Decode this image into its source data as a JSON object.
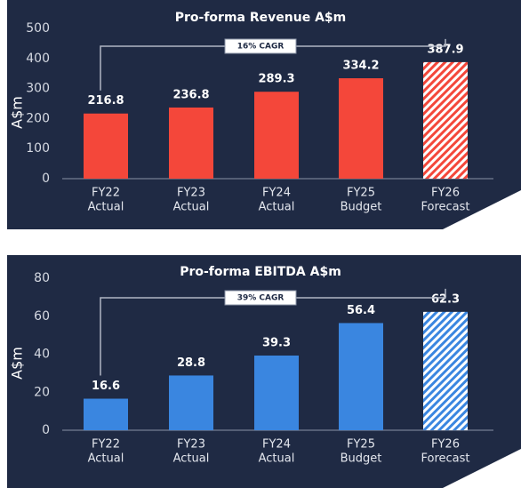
{
  "chart_data": [
    {
      "type": "bar",
      "title": "Pro-forma Revenue A$m",
      "y_label": "A$m",
      "categories": [
        [
          "FY22",
          "Actual"
        ],
        [
          "FY23",
          "Actual"
        ],
        [
          "FY24",
          "Actual"
        ],
        [
          "FY25",
          "Budget"
        ],
        [
          "FY26",
          "Forecast"
        ]
      ],
      "values": [
        216.8,
        236.8,
        289.3,
        334.2,
        387.9
      ],
      "color": "#f4473a",
      "hatch": [
        false,
        false,
        false,
        false,
        true
      ],
      "ylim": [
        0,
        500
      ],
      "yticks": [
        0,
        100,
        200,
        300,
        400,
        500
      ],
      "annotation": "16% CAGR"
    },
    {
      "type": "bar",
      "title": "Pro-forma EBITDA A$m",
      "y_label": "A$m",
      "categories": [
        [
          "FY22",
          "Actual"
        ],
        [
          "FY23",
          "Actual"
        ],
        [
          "FY24",
          "Actual"
        ],
        [
          "FY25",
          "Budget"
        ],
        [
          "FY26",
          "Forecast"
        ]
      ],
      "values": [
        16.6,
        28.8,
        39.3,
        56.4,
        62.3
      ],
      "color": "#3a86e0",
      "hatch": [
        false,
        false,
        false,
        false,
        true
      ],
      "ylim": [
        0,
        80
      ],
      "yticks": [
        0,
        20,
        40,
        60,
        80
      ],
      "annotation": "39% CAGR"
    }
  ]
}
